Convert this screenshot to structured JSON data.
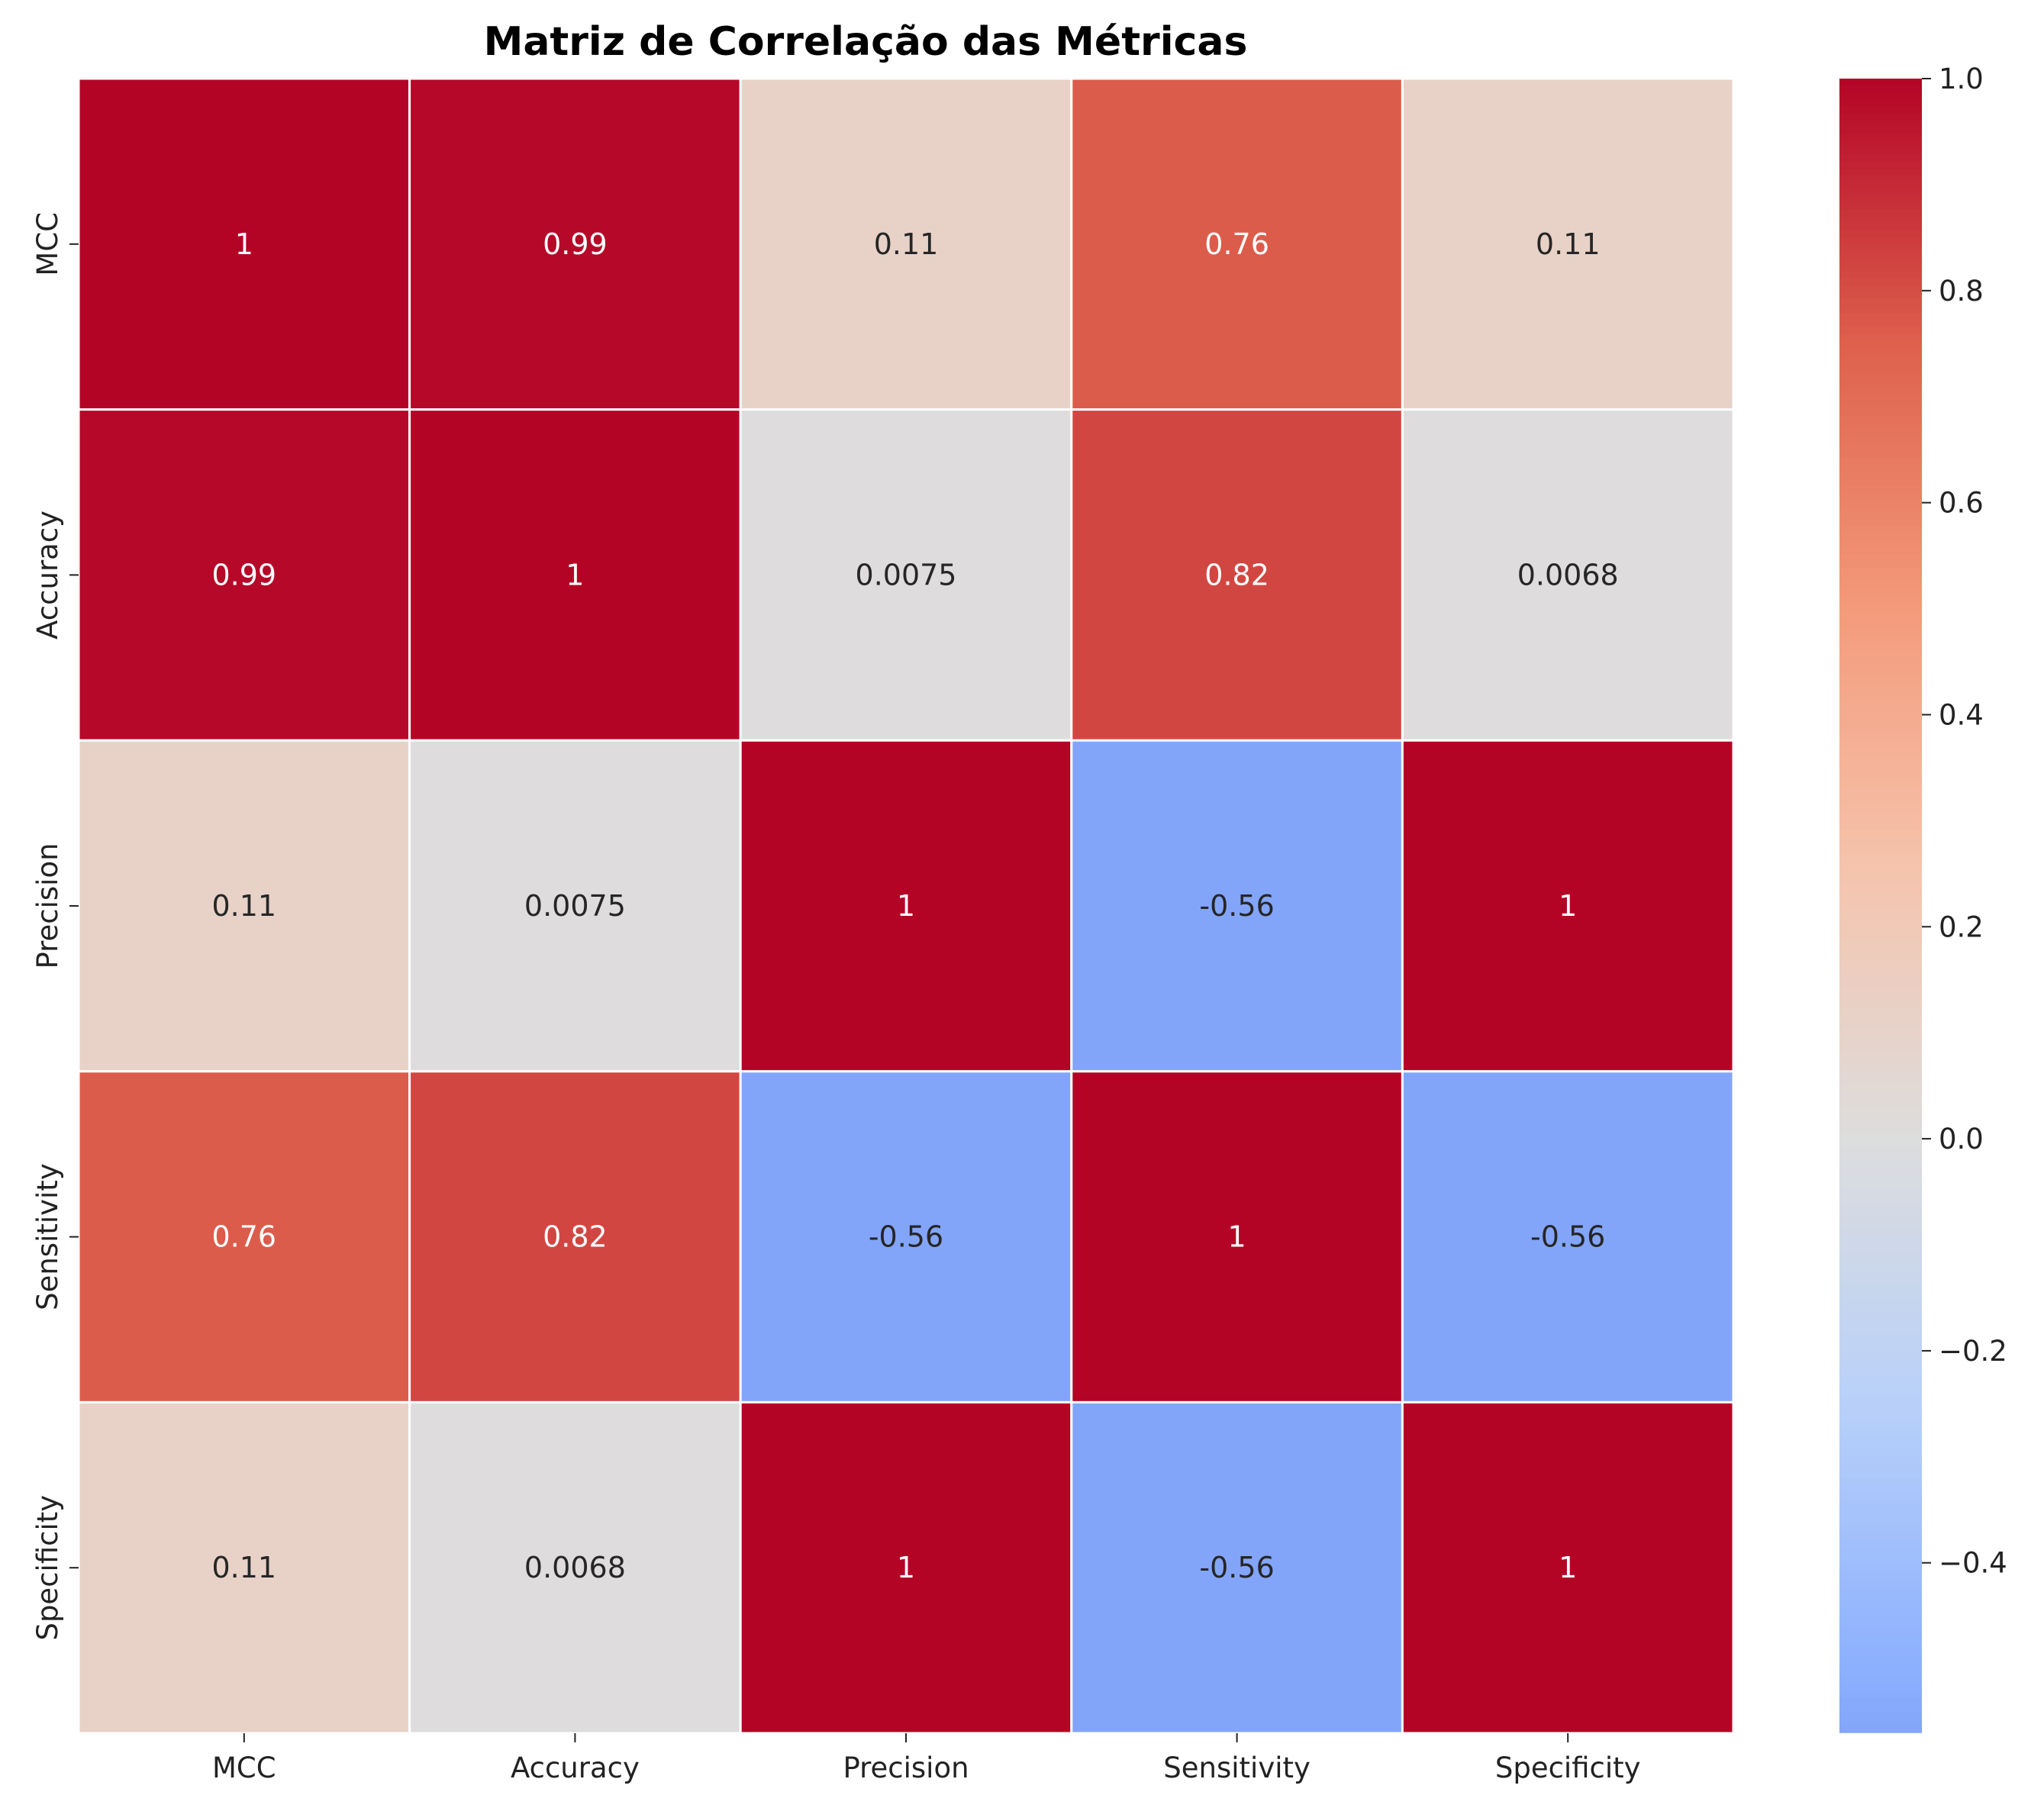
{
  "chart_data": {
    "type": "heatmap",
    "title": "Matriz de Correlação das Métricas",
    "x_categories": [
      "MCC",
      "Accuracy",
      "Precision",
      "Sensitivity",
      "Specificity"
    ],
    "y_categories": [
      "MCC",
      "Accuracy",
      "Precision",
      "Sensitivity",
      "Specificity"
    ],
    "values": [
      [
        1,
        0.99,
        0.11,
        0.76,
        0.11
      ],
      [
        0.99,
        1,
        0.0075,
        0.82,
        0.0068
      ],
      [
        0.11,
        0.0075,
        1,
        -0.56,
        1
      ],
      [
        0.76,
        0.82,
        -0.56,
        1,
        -0.56
      ],
      [
        0.11,
        0.0068,
        1,
        -0.56,
        1
      ]
    ],
    "cell_labels": [
      [
        "1",
        "0.99",
        "0.11",
        "0.76",
        "0.11"
      ],
      [
        "0.99",
        "1",
        "0.0075",
        "0.82",
        "0.0068"
      ],
      [
        "0.11",
        "0.0075",
        "1",
        "-0.56",
        "1"
      ],
      [
        "0.76",
        "0.82",
        "-0.56",
        "1",
        "-0.56"
      ],
      [
        "0.11",
        "0.0068",
        "1",
        "-0.56",
        "1"
      ]
    ],
    "colormap": "coolwarm",
    "colormap_center": 0,
    "colorbar": {
      "range": [
        -0.56,
        1.0
      ],
      "ticks": [
        -0.4,
        -0.2,
        0.0,
        0.2,
        0.4,
        0.6,
        0.8,
        1.0
      ],
      "tick_labels": [
        "−0.4",
        "−0.2",
        "0.0",
        "0.2",
        "0.4",
        "0.6",
        "0.8",
        "1.0"
      ],
      "placement": "right"
    },
    "grid_line_color": "#ffffff"
  }
}
